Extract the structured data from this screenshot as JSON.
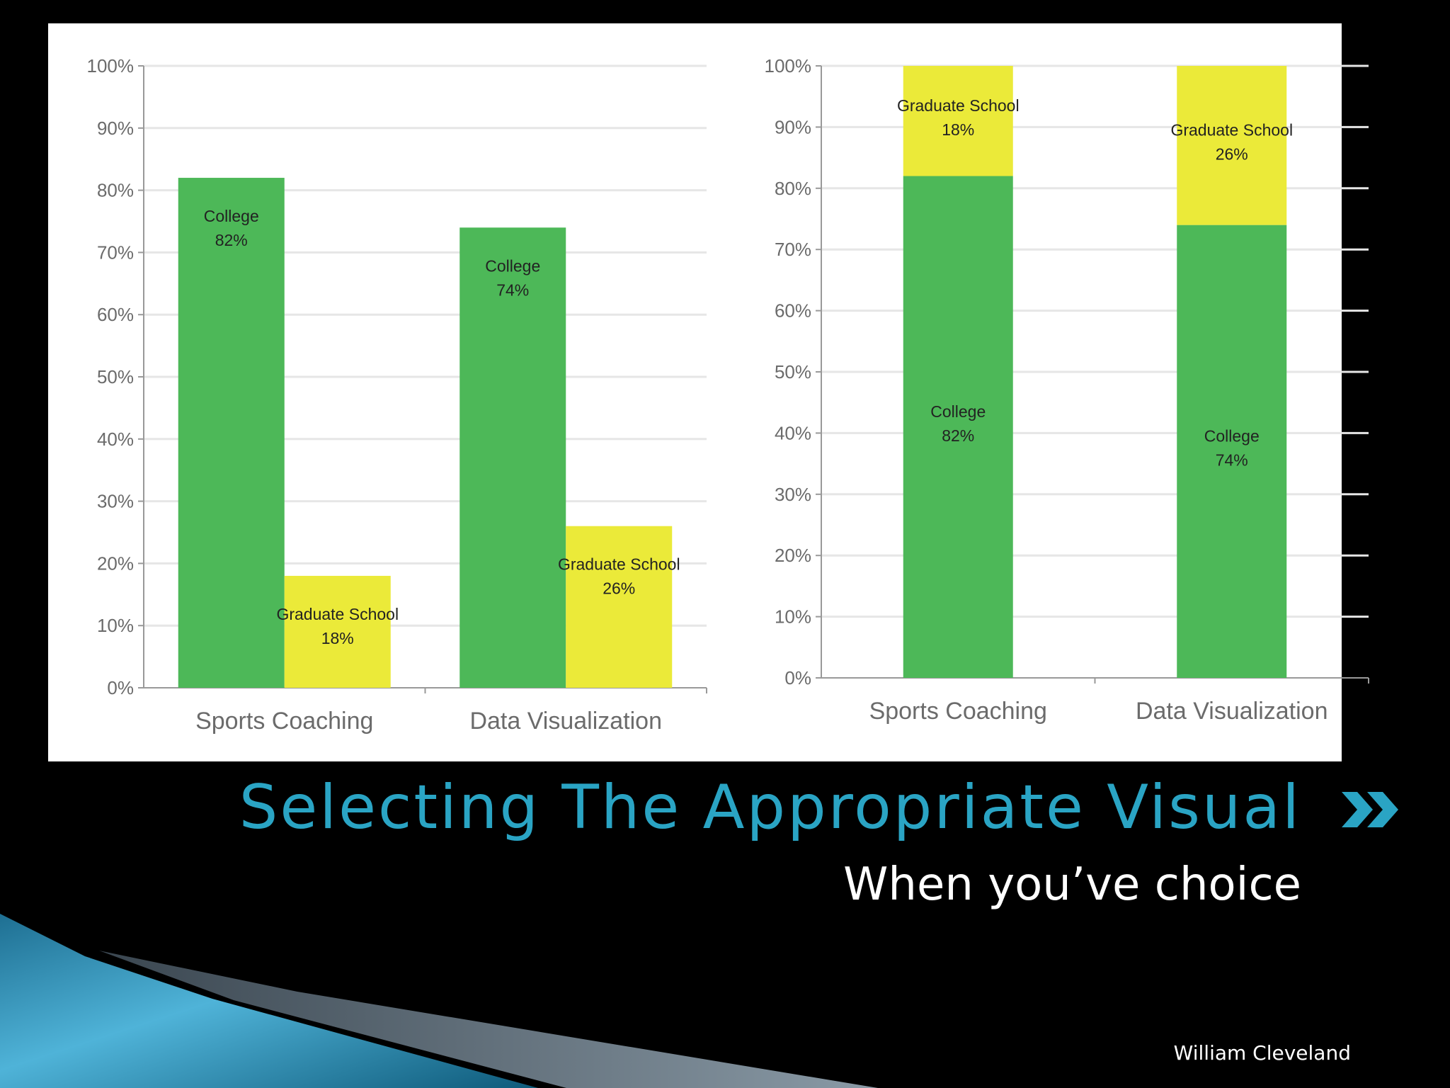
{
  "slide": {
    "title": "Selecting The Appropriate Visual",
    "subtitle": "When you’ve choice",
    "attribution": "William Cleveland",
    "title_color": "#2aa4c4",
    "nav_icon": "double-chevron-right-icon"
  },
  "chart_data": [
    {
      "type": "bar",
      "title": "",
      "xlabel": "",
      "ylabel": "",
      "categories": [
        "Sports Coaching",
        "Data Visualization"
      ],
      "series": [
        {
          "name": "College",
          "values": [
            82,
            74
          ],
          "color": "#4db858"
        },
        {
          "name": "Graduate School",
          "values": [
            18,
            26
          ],
          "color": "#ebea39"
        }
      ],
      "data_labels": [
        [
          "College",
          "82%",
          "College",
          "74%"
        ],
        [
          "Graduate School",
          "18%",
          "Graduate School",
          "26%"
        ]
      ],
      "ylim": [
        0,
        100
      ],
      "yticks": [
        "0%",
        "10%",
        "20%",
        "30%",
        "40%",
        "50%",
        "60%",
        "70%",
        "80%",
        "90%",
        "100%"
      ],
      "grid": true,
      "legend": "none"
    },
    {
      "type": "bar",
      "stacked": true,
      "title": "",
      "xlabel": "",
      "ylabel": "",
      "categories": [
        "Sports Coaching",
        "Data Visualization"
      ],
      "series": [
        {
          "name": "College",
          "values": [
            82,
            74
          ],
          "color": "#4db858"
        },
        {
          "name": "Graduate School",
          "values": [
            18,
            26
          ],
          "color": "#ebea39"
        }
      ],
      "data_labels": [
        [
          "College",
          "82%",
          "College",
          "74%"
        ],
        [
          "Graduate School",
          "18%",
          "Graduate School",
          "26%"
        ]
      ],
      "ylim": [
        0,
        100
      ],
      "yticks": [
        "0%",
        "10%",
        "20%",
        "30%",
        "40%",
        "50%",
        "60%",
        "70%",
        "80%",
        "90%",
        "100%"
      ],
      "grid": true,
      "legend": "none"
    }
  ]
}
